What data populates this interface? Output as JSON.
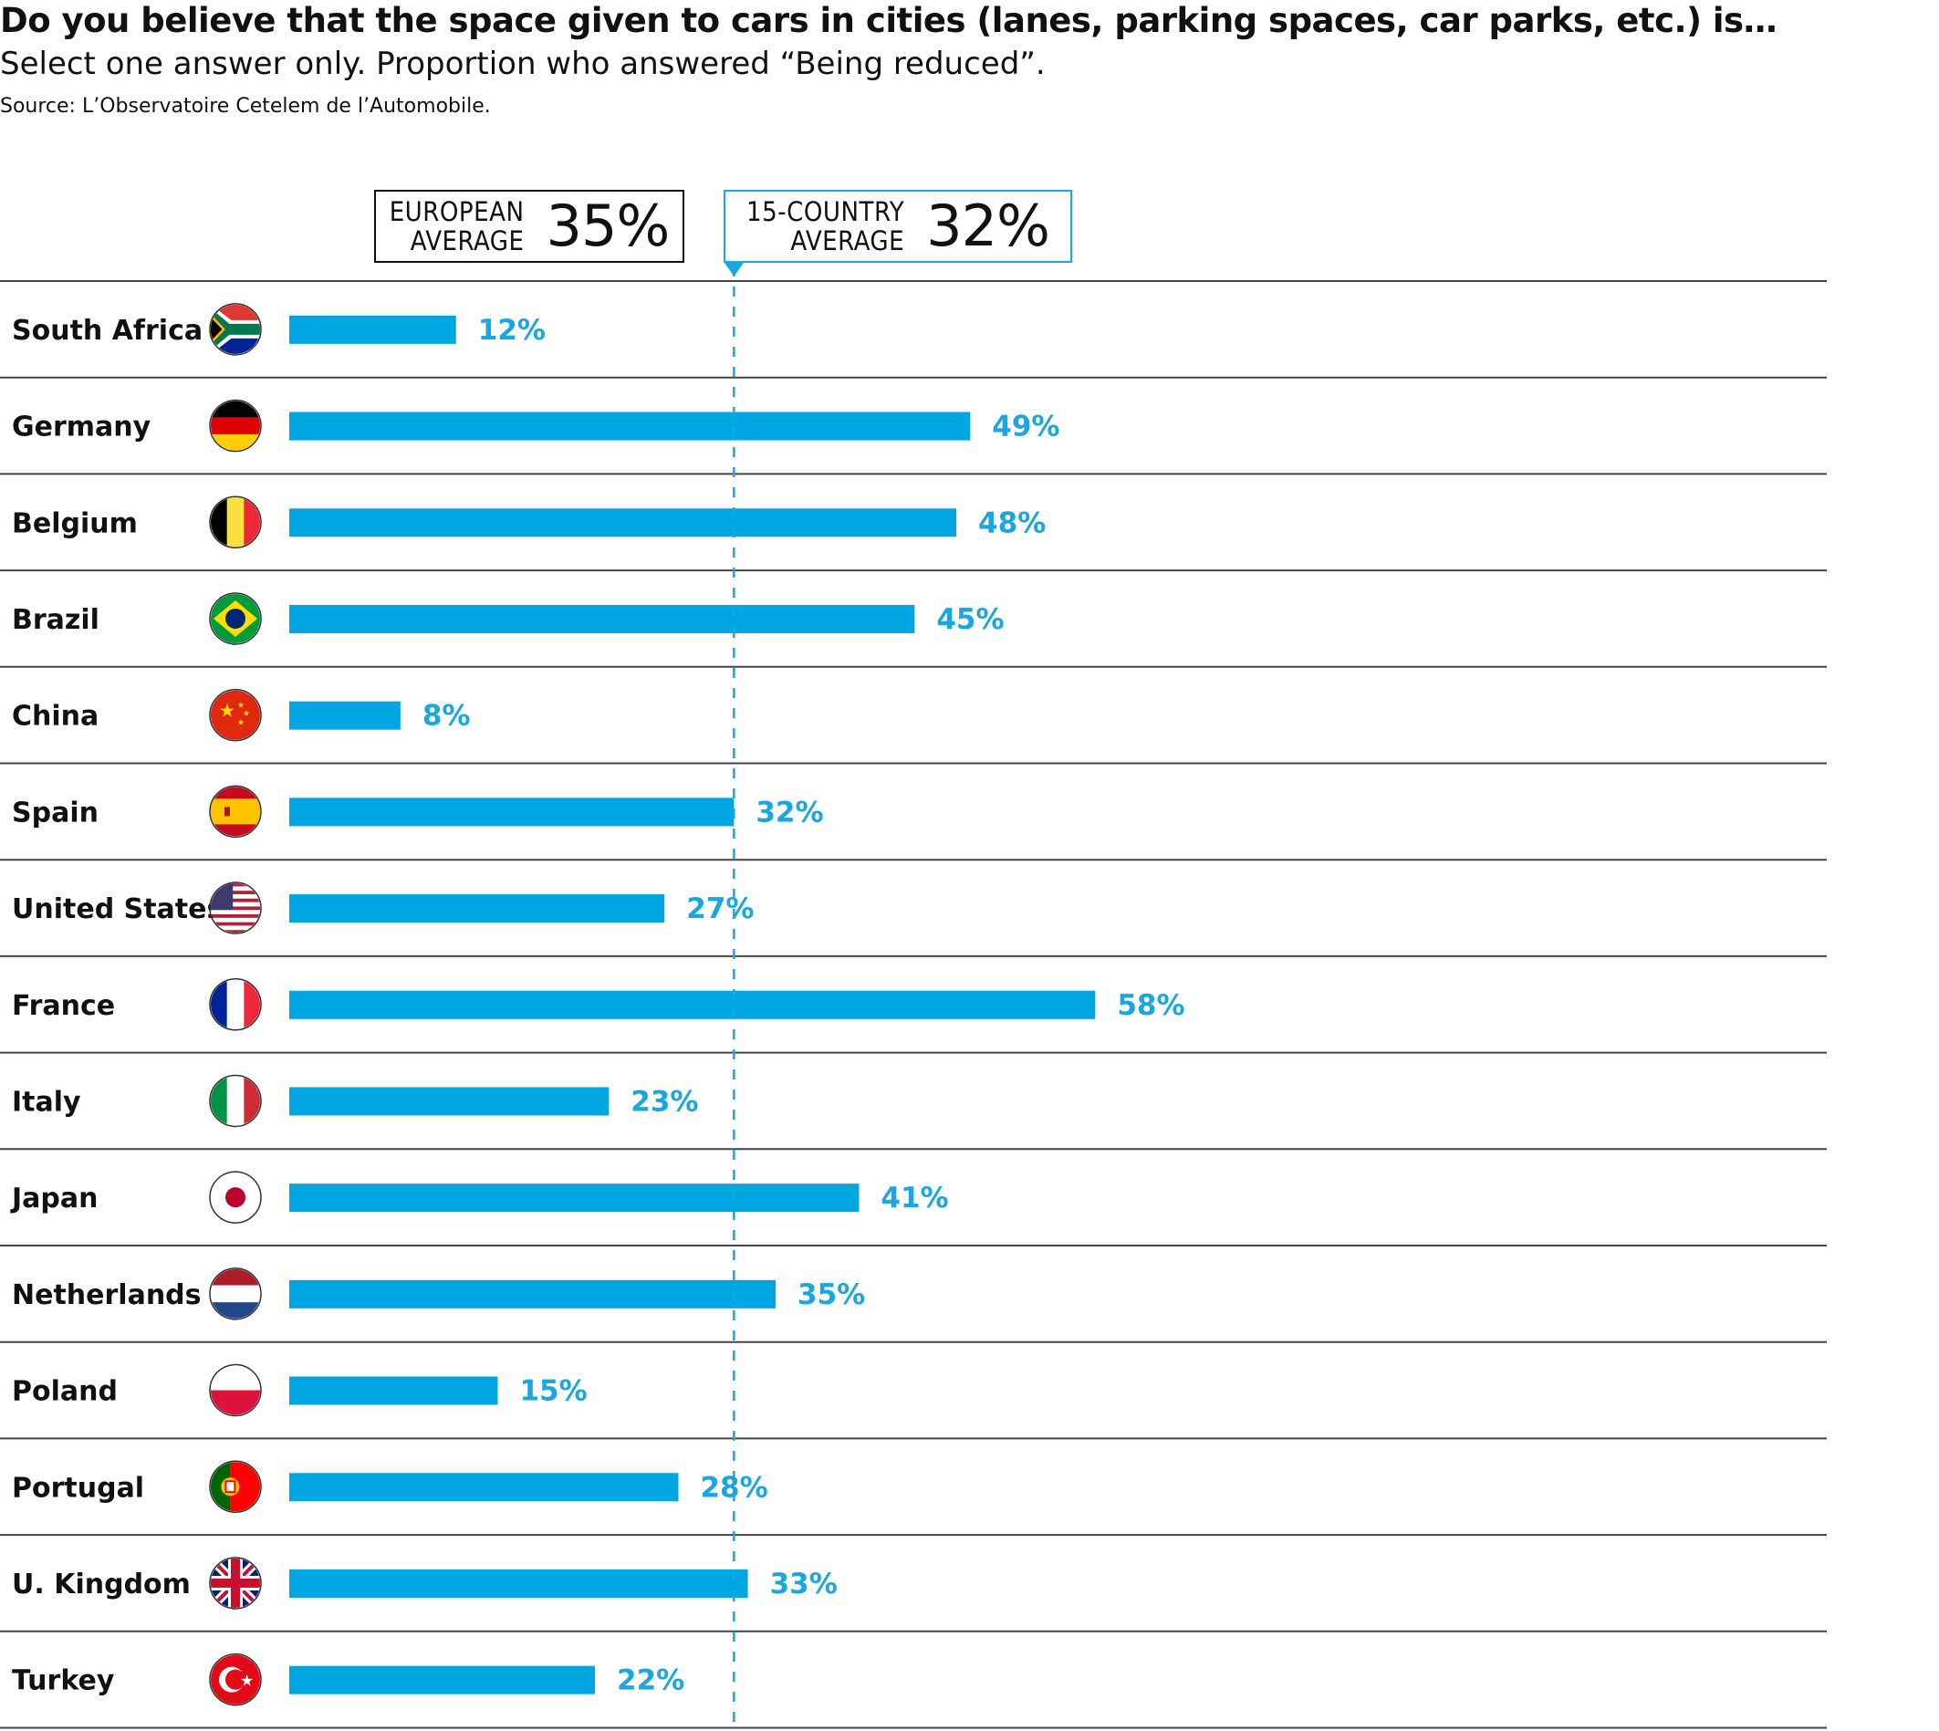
{
  "title": "Do you believe that the space given to cars in cities (lanes, parking spaces, car parks, etc.) is…",
  "subtitle": "Select one answer only. Proportion who answered “Being reduced”.",
  "source": "Source: L’Observatoire Cetelem de l’Automobile.",
  "averages": {
    "european": {
      "line1": "EUROPEAN",
      "line2": "AVERAGE",
      "value": "35%"
    },
    "country": {
      "line1": "15-COUNTRY",
      "line2": "AVERAGE",
      "value": "32%"
    }
  },
  "colors": {
    "bar": "#00a6e2",
    "label": "#1aa7e0",
    "grid": "#444444",
    "text": "#111111"
  },
  "chart_data": {
    "type": "bar",
    "orientation": "horizontal",
    "unit": "%",
    "categories": [
      "South Africa",
      "Germany",
      "Belgium",
      "Brazil",
      "China",
      "Spain",
      "United States",
      "France",
      "Italy",
      "Japan",
      "Netherlands",
      "Poland",
      "Portugal",
      "U. Kingdom",
      "Turkey"
    ],
    "values": [
      12,
      49,
      48,
      45,
      8,
      32,
      27,
      58,
      23,
      41,
      35,
      15,
      28,
      33,
      22
    ],
    "value_labels": [
      "12%",
      "49%",
      "48%",
      "45%",
      "8%",
      "32%",
      "27%",
      "58%",
      "23%",
      "41%",
      "35%",
      "15%",
      "28%",
      "33%",
      "22%"
    ],
    "flags": [
      "south-africa-flag-icon",
      "germany-flag-icon",
      "belgium-flag-icon",
      "brazil-flag-icon",
      "china-flag-icon",
      "spain-flag-icon",
      "united-states-flag-icon",
      "france-flag-icon",
      "italy-flag-icon",
      "japan-flag-icon",
      "netherlands-flag-icon",
      "poland-flag-icon",
      "portugal-flag-icon",
      "uk-flag-icon",
      "turkey-flag-icon"
    ],
    "reference_line": {
      "label": "15-COUNTRY AVERAGE",
      "value": 32
    },
    "xlim": [
      0,
      100
    ]
  }
}
